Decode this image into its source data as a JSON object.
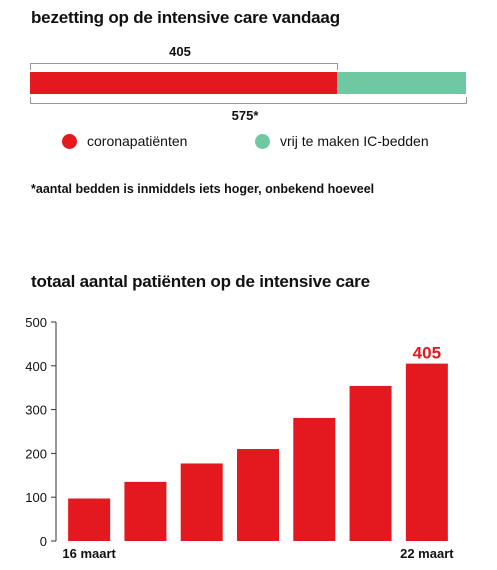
{
  "section1": {
    "title": "bezetting op de intensive care vandaag",
    "occupied_label": "405",
    "total_label": "575*",
    "occupied_value": 405,
    "total_value": 575,
    "legend": [
      {
        "label": "coronapatiënten",
        "color": "#e3191f"
      },
      {
        "label": "vrij te maken IC-bedden",
        "color": "#6ec9a3"
      }
    ],
    "footnote": "*aantal bedden is inmiddels iets hoger, onbekend hoeveel"
  },
  "section2": {
    "title": "totaal aantal patiënten op de intensive care"
  },
  "chart_data": {
    "type": "bar",
    "title": "totaal aantal patiënten op de intensive care",
    "categories": [
      "16 maart",
      "",
      "",
      "",
      "",
      "",
      "22 maart"
    ],
    "values": [
      97,
      135,
      177,
      210,
      281,
      354,
      405
    ],
    "ylim": [
      0,
      500
    ],
    "yticks": [
      0,
      100,
      200,
      300,
      400,
      500
    ],
    "xtick_labels": [
      "16 maart",
      "22 maart"
    ],
    "highlight_label": "405",
    "bar_color": "#e3191f",
    "grid": false
  }
}
